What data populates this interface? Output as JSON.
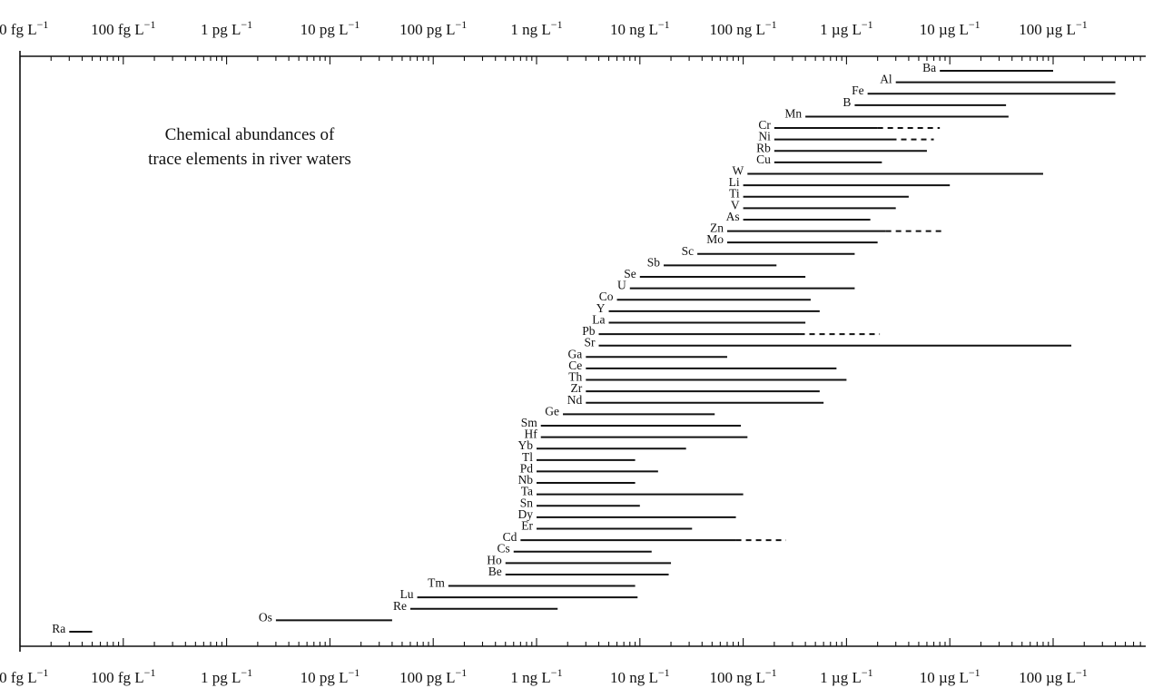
{
  "chart_data": {
    "type": "range",
    "title": "Chemical abundances of trace elements in river waters",
    "title_lines": [
      "Chemical abundances of",
      "trace elements in river waters"
    ],
    "x_scale": "log",
    "x_unit": "g L^-1",
    "xlim": [
      1e-14,
      0.001
    ],
    "tick_labels": [
      {
        "value": 1e-14,
        "prefix": "10 fg L",
        "sup": "−1"
      },
      {
        "value": 1e-13,
        "prefix": "100 fg L",
        "sup": "−1"
      },
      {
        "value": 1e-12,
        "prefix": "1 pg L",
        "sup": "−1"
      },
      {
        "value": 1e-11,
        "prefix": "10 pg L",
        "sup": "−1"
      },
      {
        "value": 1e-10,
        "prefix": "100 pg L",
        "sup": "−1"
      },
      {
        "value": 1e-09,
        "prefix": "1 ng L",
        "sup": "−1"
      },
      {
        "value": 1e-08,
        "prefix": "10 ng L",
        "sup": "−1"
      },
      {
        "value": 1e-07,
        "prefix": "100 ng L",
        "sup": "−1"
      },
      {
        "value": 1e-06,
        "prefix": "1 µg L",
        "sup": "−1"
      },
      {
        "value": 1e-05,
        "prefix": "10 µg L",
        "sup": "−1"
      },
      {
        "value": 0.0001,
        "prefix": "100 µg L",
        "sup": "−1"
      }
    ],
    "series": [
      {
        "name": "Ba",
        "min": 8e-06,
        "max": 0.0001
      },
      {
        "name": "Al",
        "min": 3e-06,
        "max": 0.0004
      },
      {
        "name": "Fe",
        "min": 1.6e-06,
        "max": 0.0004
      },
      {
        "name": "B",
        "min": 1.2e-06,
        "max": 3.5e-05
      },
      {
        "name": "Mn",
        "min": 4e-07,
        "max": 3.7e-05
      },
      {
        "name": "Cr",
        "min": 2e-07,
        "max": 2e-06,
        "dashed_max": 8e-06
      },
      {
        "name": "Ni",
        "min": 2e-07,
        "max": 2.7e-06,
        "dashed_max": 7e-06
      },
      {
        "name": "Rb",
        "min": 2e-07,
        "max": 6e-06
      },
      {
        "name": "Cu",
        "min": 2e-07,
        "max": 2.2e-06
      },
      {
        "name": "W",
        "min": 1.1e-07,
        "max": 8e-05
      },
      {
        "name": "Li",
        "min": 1e-07,
        "max": 1e-05
      },
      {
        "name": "Ti",
        "min": 1e-07,
        "max": 4e-06
      },
      {
        "name": "V",
        "min": 1e-07,
        "max": 3e-06
      },
      {
        "name": "As",
        "min": 1e-07,
        "max": 1.7e-06
      },
      {
        "name": "Zn",
        "min": 7e-08,
        "max": 2.4e-06,
        "dashed_max": 9e-06
      },
      {
        "name": "Mo",
        "min": 7e-08,
        "max": 2e-06
      },
      {
        "name": "Sc",
        "min": 3.6e-08,
        "max": 1.2e-06
      },
      {
        "name": "Sb",
        "min": 1.7e-08,
        "max": 2.1e-07
      },
      {
        "name": "Se",
        "min": 1e-08,
        "max": 4e-07
      },
      {
        "name": "U",
        "min": 8e-09,
        "max": 1.2e-06
      },
      {
        "name": "Co",
        "min": 6e-09,
        "max": 4.5e-07
      },
      {
        "name": "Y",
        "min": 5e-09,
        "max": 5.5e-07
      },
      {
        "name": "La",
        "min": 5e-09,
        "max": 4e-07
      },
      {
        "name": "Pb",
        "min": 4e-09,
        "max": 3.5e-07,
        "dashed_max": 2.1e-06
      },
      {
        "name": "Sr",
        "min": 4e-09,
        "max": 0.00015
      },
      {
        "name": "Ga",
        "min": 3e-09,
        "max": 7e-08
      },
      {
        "name": "Ce",
        "min": 3e-09,
        "max": 8e-07
      },
      {
        "name": "Th",
        "min": 3e-09,
        "max": 1e-06
      },
      {
        "name": "Zr",
        "min": 3e-09,
        "max": 5.5e-07
      },
      {
        "name": "Nd",
        "min": 3e-09,
        "max": 6e-07
      },
      {
        "name": "Ge",
        "min": 1.8e-09,
        "max": 5.3e-08
      },
      {
        "name": "Sm",
        "min": 1.1e-09,
        "max": 9.5e-08
      },
      {
        "name": "Hf",
        "min": 1.1e-09,
        "max": 1.1e-07
      },
      {
        "name": "Yb",
        "min": 1e-09,
        "max": 2.8e-08
      },
      {
        "name": "Tl",
        "min": 1e-09,
        "max": 9e-09
      },
      {
        "name": "Pd",
        "min": 1e-09,
        "max": 1.5e-08
      },
      {
        "name": "Nb",
        "min": 1e-09,
        "max": 9e-09
      },
      {
        "name": "Ta",
        "min": 1e-09,
        "max": 1e-07
      },
      {
        "name": "Sn",
        "min": 1e-09,
        "max": 1e-08
      },
      {
        "name": "Dy",
        "min": 1e-09,
        "max": 8.5e-08
      },
      {
        "name": "Er",
        "min": 1e-09,
        "max": 3.2e-08
      },
      {
        "name": "Cd",
        "min": 7e-10,
        "max": 8.5e-08,
        "dashed_max": 2.6e-07
      },
      {
        "name": "Cs",
        "min": 6e-10,
        "max": 1.3e-08
      },
      {
        "name": "Ho",
        "min": 5e-10,
        "max": 2e-08
      },
      {
        "name": "Be",
        "min": 5e-10,
        "max": 1.9e-08
      },
      {
        "name": "Tm",
        "min": 1.4e-10,
        "max": 9e-09
      },
      {
        "name": "Lu",
        "min": 7e-11,
        "max": 9.5e-09
      },
      {
        "name": "Re",
        "min": 6e-11,
        "max": 1.6e-09
      },
      {
        "name": "Os",
        "min": 3e-12,
        "max": 4e-11
      },
      {
        "name": "Ra",
        "min": 3e-14,
        "max": 5e-14
      }
    ]
  }
}
